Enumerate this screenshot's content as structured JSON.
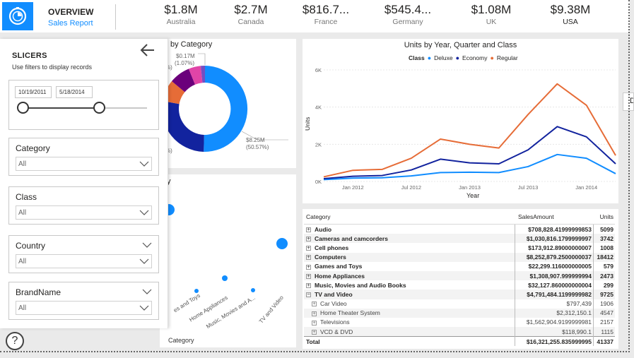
{
  "header": {
    "nav_title": "OVERVIEW",
    "nav_subtitle": "Sales Report",
    "logo_icon": "report-clock-icon",
    "kpis": [
      {
        "value": "$1.8M",
        "country": "Australia"
      },
      {
        "value": "$2.7M",
        "country": "Canada"
      },
      {
        "value": "$816.7...",
        "country": "France"
      },
      {
        "value": "$545.4...",
        "country": "Germany"
      },
      {
        "value": "$1.08M",
        "country": "UK"
      },
      {
        "value": "$9.38M",
        "country": "USA"
      }
    ]
  },
  "slicers": {
    "title": "SLICERS",
    "subtitle": "Use filters to display records",
    "date_start": "10/19/2011",
    "date_end": "5/18/2014",
    "filters": [
      {
        "label": "Category",
        "value": "All"
      },
      {
        "label": "Class",
        "value": "All"
      },
      {
        "label": "Country",
        "value": "All"
      },
      {
        "label": "BrandName",
        "value": "All"
      }
    ]
  },
  "donut": {
    "title_partial": "by Category",
    "label_small": "$0.17M",
    "label_small_pct": "(1.07%)",
    "label_big": "$8.25M",
    "label_big_pct": "(50.57%)",
    "left_pct_1": "%)",
    "left_pct_2": "%)"
  },
  "scatter": {
    "title_partial": "y",
    "xlabel": "Category",
    "tick_labels": [
      "es and Toys",
      "Home Appliances",
      "Music, Movies and A...",
      "TV and Video"
    ]
  },
  "edge_tab_label": "D",
  "chart_data": {
    "type": "line",
    "title": "Units by Year, Quarter and Class",
    "legend_title": "Class",
    "xlabel": "Year",
    "ylabel": "Units",
    "x_ticks": [
      "Jan 2012",
      "Jul 2012",
      "Jan 2013",
      "Jul 2013",
      "Jan 2014"
    ],
    "y_ticks": [
      "0K",
      "2K",
      "4K",
      "6K"
    ],
    "ylim": [
      0,
      6000
    ],
    "x": [
      "2011 Q4",
      "2012 Q1",
      "2012 Q2",
      "2012 Q3",
      "2012 Q4",
      "2013 Q1",
      "2013 Q2",
      "2013 Q3",
      "2013 Q4",
      "2014 Q1",
      "2014 Q2"
    ],
    "series": [
      {
        "name": "Deluxe",
        "color": "#118dff",
        "values": [
          100,
          180,
          200,
          300,
          480,
          500,
          480,
          800,
          1450,
          1250,
          420
        ]
      },
      {
        "name": "Economy",
        "color": "#12239e",
        "values": [
          150,
          280,
          320,
          620,
          1200,
          1000,
          950,
          1700,
          2950,
          2400,
          950
        ]
      },
      {
        "name": "Regular",
        "color": "#e66c37",
        "values": [
          250,
          600,
          650,
          1250,
          2280,
          2000,
          1800,
          3600,
          5250,
          4100,
          1400
        ]
      }
    ]
  },
  "table": {
    "headers": [
      "Category",
      "SalesAmount",
      "Units"
    ],
    "rows": [
      {
        "category": "Audio",
        "sales": "$708,828.41999999853",
        "units": "5099",
        "level": 0,
        "expander": "+"
      },
      {
        "category": "Cameras and camcorders",
        "sales": "$1,030,816.1799999997",
        "units": "3742",
        "level": 0,
        "expander": "+"
      },
      {
        "category": "Cell phones",
        "sales": "$173,912.89000000007",
        "units": "1008",
        "level": 0,
        "expander": "+"
      },
      {
        "category": "Computers",
        "sales": "$8,252,879.2500000037",
        "units": "18412",
        "level": 0,
        "expander": "+"
      },
      {
        "category": "Games and Toys",
        "sales": "$22,299.116000000005",
        "units": "579",
        "level": 0,
        "expander": "+"
      },
      {
        "category": "Home Appliances",
        "sales": "$1,308,907.999999994",
        "units": "2473",
        "level": 0,
        "expander": "+"
      },
      {
        "category": "Music, Movies and Audio Books",
        "sales": "$32,127.860000000004",
        "units": "299",
        "level": 0,
        "expander": "+"
      },
      {
        "category": "TV and Video",
        "sales": "$4,791,484.1199999982",
        "units": "9725",
        "level": 0,
        "expander": "−"
      },
      {
        "category": "Car Video",
        "sales": "$797,439",
        "units": "1906",
        "level": 1,
        "expander": "+"
      },
      {
        "category": "Home Theater System",
        "sales": "$2,312,150.1",
        "units": "4547",
        "level": 1,
        "expander": "+"
      },
      {
        "category": "Televisions",
        "sales": "$1,562,904.9199999981",
        "units": "2157",
        "level": 1,
        "expander": "+"
      },
      {
        "category": "VCD & DVD",
        "sales": "$118,990.1",
        "units": "1115",
        "level": 1,
        "expander": "+"
      }
    ],
    "total_label": "Total",
    "total_sales": "$16,321,255.835999995",
    "total_units": "41337"
  }
}
